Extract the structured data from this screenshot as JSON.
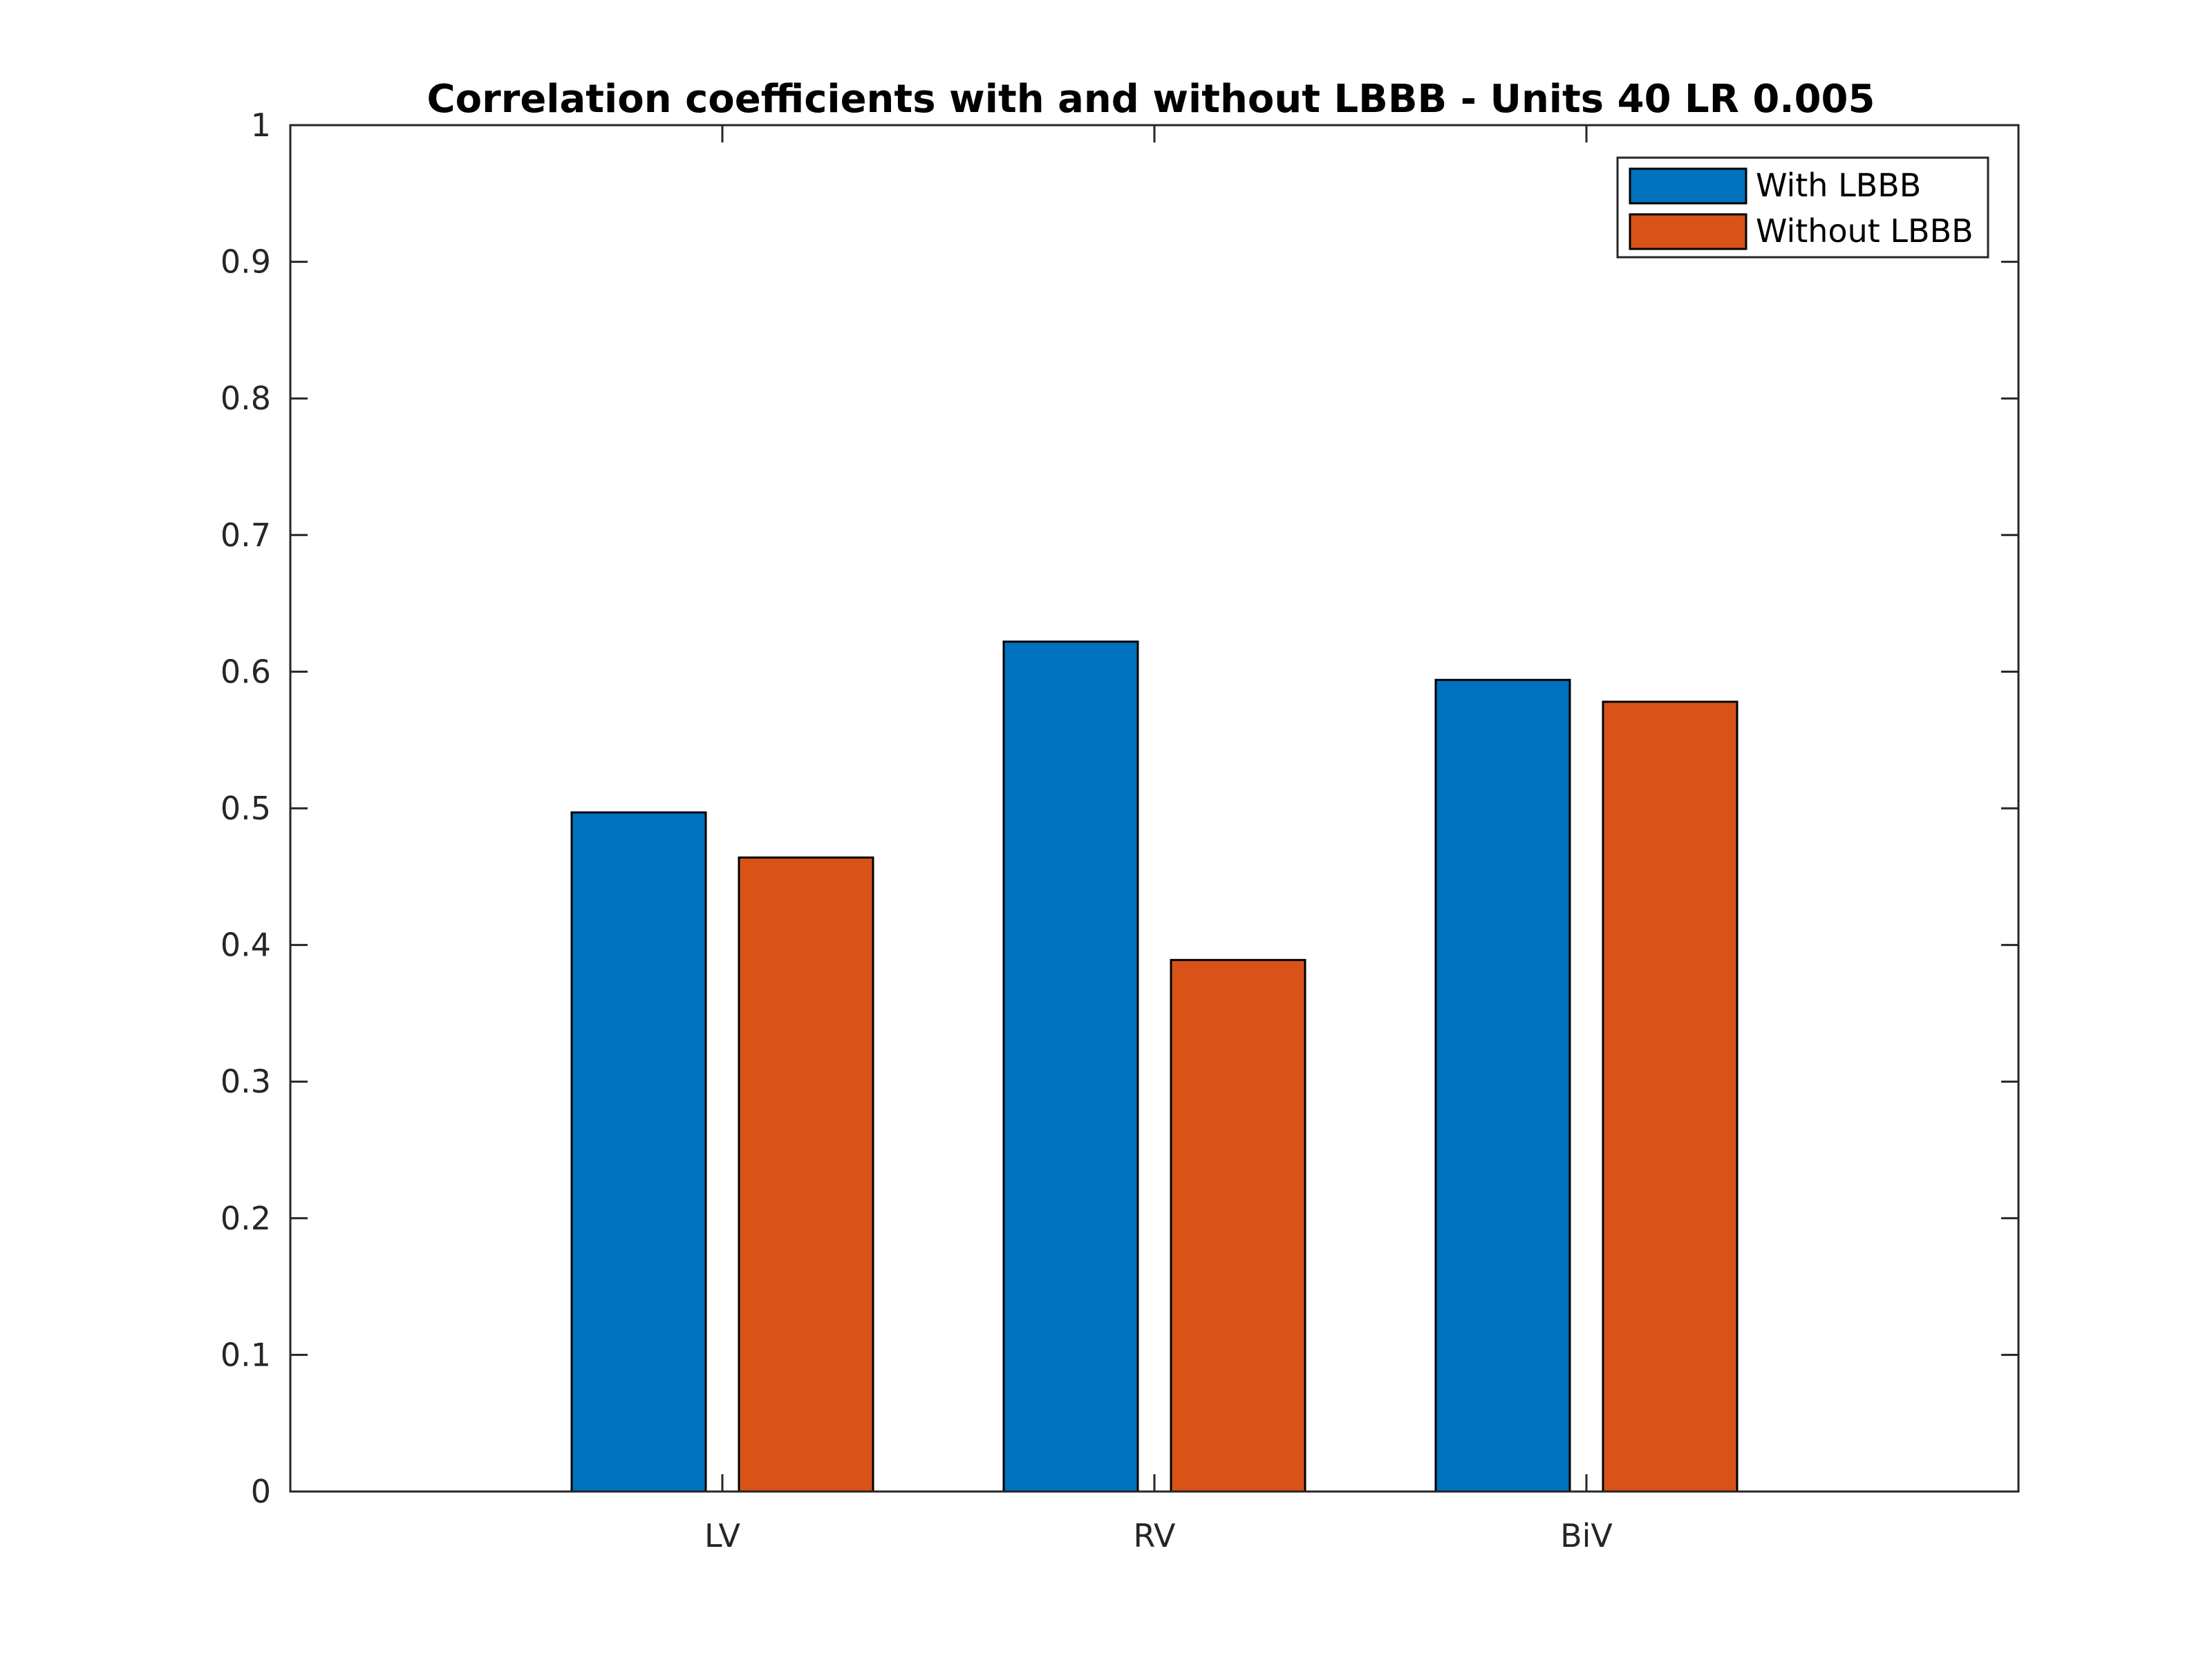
{
  "chart_data": {
    "type": "bar",
    "title": "Correlation coefficients with and without LBBB - Units 40 LR 0.005",
    "xlabel": "",
    "ylabel": "",
    "categories": [
      "LV",
      "RV",
      "BiV"
    ],
    "series": [
      {
        "name": "With LBBB",
        "color": "#0072BD",
        "values": [
          0.497,
          0.622,
          0.594
        ]
      },
      {
        "name": "Without LBBB",
        "color": "#D95319",
        "values": [
          0.464,
          0.389,
          0.578
        ]
      }
    ],
    "ylim": [
      0,
      1
    ],
    "yticks": [
      0,
      0.1,
      0.2,
      0.3,
      0.4,
      0.5,
      0.6,
      0.7,
      0.8,
      0.9,
      1
    ],
    "ytick_labels": [
      "0",
      "0.1",
      "0.2",
      "0.3",
      "0.4",
      "0.5",
      "0.6",
      "0.7",
      "0.8",
      "0.9",
      "1"
    ],
    "grid": false,
    "legend_position": "top-right"
  }
}
